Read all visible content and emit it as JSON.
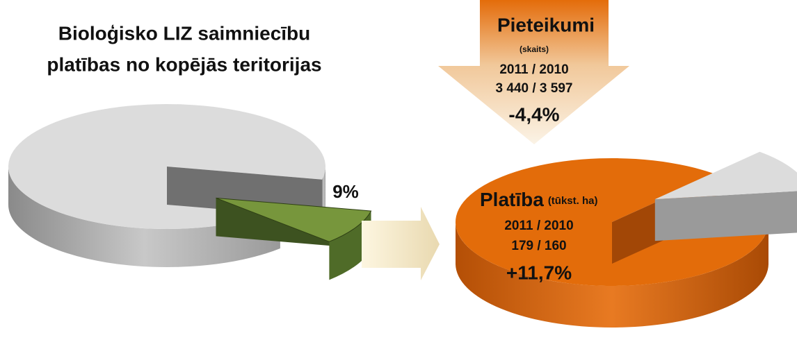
{
  "title": [
    "Bioloģisko LIZ saimniecību",
    "platības no kopējās teritorijas"
  ],
  "share": {
    "value": 9,
    "label": "9%"
  },
  "applications": {
    "title": "Pieteikumi",
    "unit": "(skaits)",
    "years": "2011 / 2010",
    "values": "3 440 / 3 597",
    "change": "-4,4%"
  },
  "area": {
    "title": "Platība",
    "unit": "(tūkst. ha)",
    "years": "2011 / 2010",
    "values": "179 / 160",
    "change": "+11,7%"
  }
}
